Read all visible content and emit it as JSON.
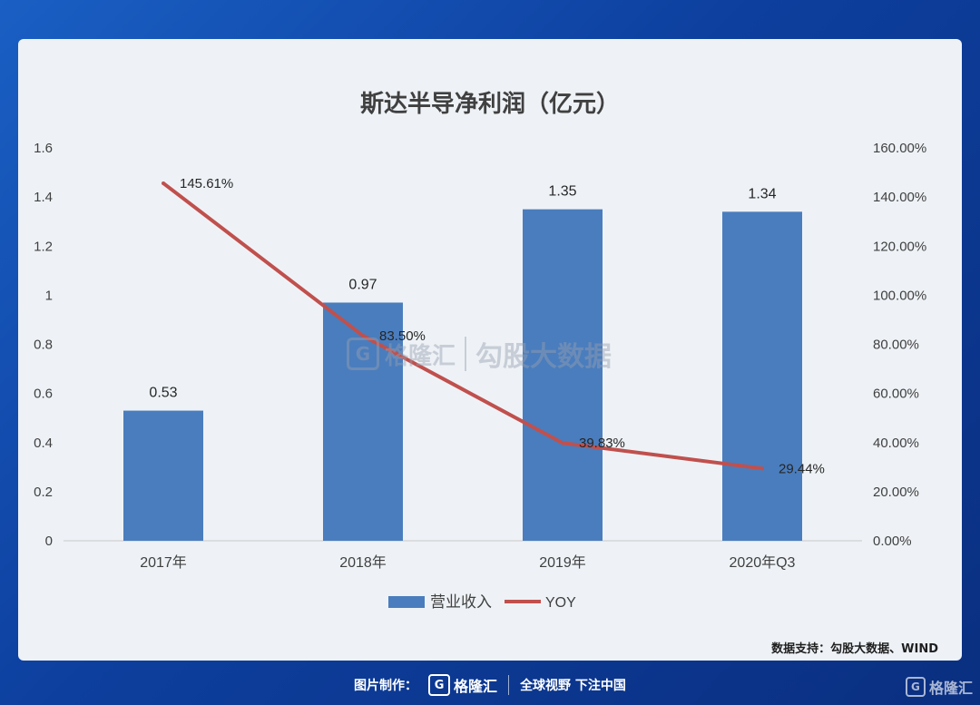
{
  "chart_data": {
    "type": "bar",
    "title": "斯达半导净利润（亿元）",
    "categories": [
      "2017年",
      "2018年",
      "2019年",
      "2020年Q3"
    ],
    "series": [
      {
        "name": "营业收入",
        "type": "bar",
        "axis": "left",
        "color": "#4a7dbd",
        "values": [
          0.53,
          0.97,
          1.35,
          1.34
        ],
        "labels": [
          "0.53",
          "0.97",
          "1.35",
          "1.34"
        ]
      },
      {
        "name": "YOY",
        "type": "line",
        "axis": "right",
        "color": "#c0504d",
        "values": [
          145.61,
          83.5,
          39.83,
          29.44
        ],
        "labels": [
          "145.61%",
          "83.50%",
          "39.83%",
          "29.44%"
        ]
      }
    ],
    "y_left": {
      "min": 0,
      "max": 1.6,
      "ticks": [
        "0",
        "0.2",
        "0.4",
        "0.6",
        "0.8",
        "1",
        "1.2",
        "1.4",
        "1.6"
      ]
    },
    "y_right": {
      "min": 0,
      "max": 160,
      "ticks": [
        "0.00%",
        "20.00%",
        "40.00%",
        "60.00%",
        "80.00%",
        "100.00%",
        "120.00%",
        "140.00%",
        "160.00%"
      ]
    },
    "grid": false,
    "legend_position": "bottom"
  },
  "watermark": {
    "brand": "格隆汇",
    "text": "勾股大数据"
  },
  "source": "数据支持：勾股大数据、WIND",
  "footer": {
    "label": "图片制作：",
    "brand": "格隆汇",
    "slogan": "全球视野 下注中国"
  },
  "icons": {
    "logo": "gelonghui-logo-icon"
  }
}
